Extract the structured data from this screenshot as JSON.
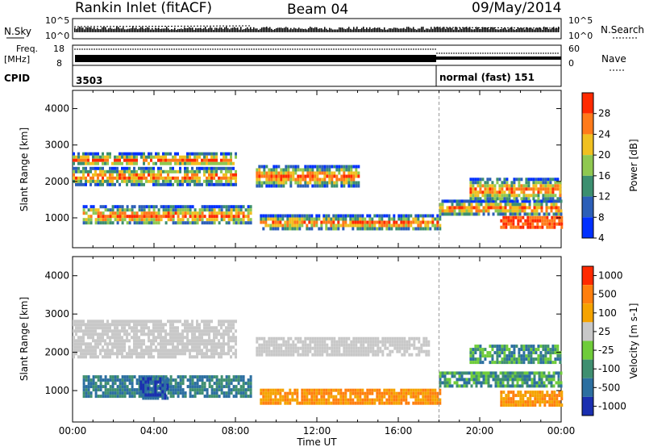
{
  "header": {
    "title": "Rankin Inlet (fitACF)",
    "beam": "Beam 04",
    "date": "09/May/2014"
  },
  "strips": {
    "nsky_label": "N.Sky",
    "nsearch_label": "N.Search",
    "nsky_ticks": [
      "10^5",
      "10^0"
    ],
    "nsearch_ticks": [
      "10^5",
      "10^0"
    ],
    "freq_label_1": "Freq.",
    "freq_label_2": "[MHz]",
    "freq_ticks": [
      "18",
      "8"
    ],
    "nave_label": "Nave",
    "nave_ticks": [
      "60",
      "0"
    ],
    "cpid_label": "CPID",
    "cpid_1": "3503",
    "cpid_2": "normal (fast) 151"
  },
  "chart_data": [
    {
      "type": "heatmap",
      "name": "power",
      "ylabel": "Slant Range [km]",
      "yticks": [
        1000,
        2000,
        3000,
        4000
      ],
      "ylim": [
        180,
        4500
      ],
      "xlim_hours": [
        0,
        24
      ],
      "colorbar": {
        "label": "Power [dB]",
        "ticks": [
          "28",
          "24",
          "20",
          "16",
          "12",
          "8",
          "4"
        ],
        "colors": [
          "#0030ff",
          "#2c5fb8",
          "#3c8f70",
          "#8fc850",
          "#f0c020",
          "#ff7a1a",
          "#ff2a00"
        ]
      },
      "bands": [
        {
          "t0": 0.0,
          "t1": 8.0,
          "r0": 1950,
          "r1": 2400
        },
        {
          "t0": 0.0,
          "t1": 8.0,
          "r0": 2450,
          "r1": 2800
        },
        {
          "t0": 0.5,
          "t1": 8.8,
          "r0": 850,
          "r1": 1350
        },
        {
          "t0": 9.0,
          "t1": 14.0,
          "r0": 1900,
          "r1": 2450
        },
        {
          "t0": 9.2,
          "t1": 18.0,
          "r0": 700,
          "r1": 1100
        },
        {
          "t0": 18.0,
          "t1": 24.0,
          "r0": 1100,
          "r1": 1500
        },
        {
          "t0": 19.5,
          "t1": 24.0,
          "r0": 1500,
          "r1": 2100
        },
        {
          "t0": 21.0,
          "t1": 24.0,
          "r0": 700,
          "r1": 1050
        }
      ]
    },
    {
      "type": "heatmap",
      "name": "velocity",
      "ylabel": "Slant Range [km]",
      "xlabel": "Time UT",
      "yticks": [
        1000,
        2000,
        3000,
        4000
      ],
      "ylim": [
        180,
        4500
      ],
      "xlim_hours": [
        0,
        24
      ],
      "xticks": [
        "00:00",
        "04:00",
        "08:00",
        "12:00",
        "16:00",
        "20:00",
        "00:00"
      ],
      "colorbar": {
        "label": "Velocity [m s-1]",
        "ticks": [
          "1000",
          "500",
          "100",
          "25",
          "-25",
          "-100",
          "-500",
          "-1000"
        ],
        "colors": [
          "#1a2fb0",
          "#2c6fa0",
          "#3f8f70",
          "#6fcc3a",
          "#c8c8c8",
          "#f5a300",
          "#ff7f0e",
          "#ff2a00"
        ]
      },
      "bands": [
        {
          "t0": 0.0,
          "t1": 8.0,
          "r0": 1900,
          "r1": 2850
        },
        {
          "t0": 9.0,
          "t1": 17.5,
          "r0": 1900,
          "r1": 2400
        },
        {
          "t0": 0.5,
          "t1": 8.8,
          "r0": 850,
          "r1": 1400
        },
        {
          "t0": 3.3,
          "t1": 4.7,
          "r0": 800,
          "r1": 1350
        },
        {
          "t0": 9.2,
          "t1": 18.0,
          "r0": 650,
          "r1": 1050
        },
        {
          "t0": 18.0,
          "t1": 24.0,
          "r0": 1100,
          "r1": 1500
        },
        {
          "t0": 19.5,
          "t1": 24.0,
          "r0": 1700,
          "r1": 2200
        },
        {
          "t0": 21.0,
          "t1": 24.0,
          "r0": 650,
          "r1": 1000
        }
      ]
    }
  ]
}
